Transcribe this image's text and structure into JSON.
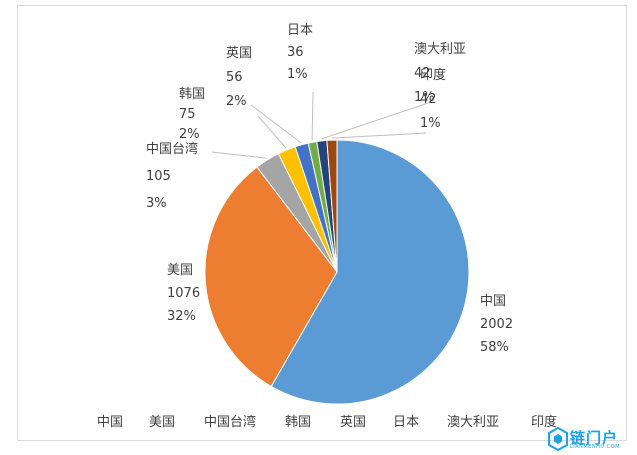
{
  "chart_data": {
    "type": "pie",
    "categories": [
      "中国",
      "美国",
      "中国台湾",
      "韩国",
      "英国",
      "日本",
      "澳大利亚",
      "印度"
    ],
    "values": [
      2002,
      1076,
      105,
      75,
      56,
      36,
      42,
      42
    ],
    "percent_labels": [
      "58%",
      "32%",
      "3%",
      "2%",
      "2%",
      "1%",
      "1%",
      "1%"
    ],
    "colors": [
      "#5b9bd5",
      "#ed7d31",
      "#a5a5a5",
      "#ffc000",
      "#4472c4",
      "#70ad47",
      "#264478",
      "#9e480e"
    ],
    "legend_position": "bottom",
    "title": ""
  },
  "watermark": {
    "text": "链门户",
    "sub": "LIANMENHU.COM"
  }
}
